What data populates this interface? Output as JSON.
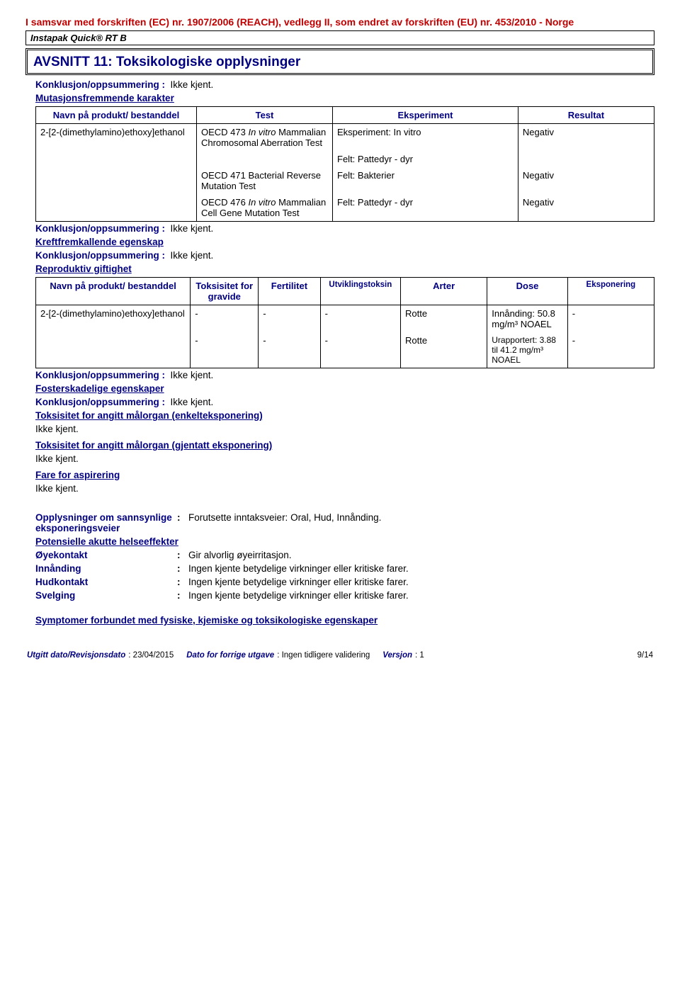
{
  "regulation_header": "I samsvar med forskriften (EC) nr. 1907/2006 (REACH), vedlegg II, som endret av forskriften (EU) nr. 453/2010 - Norge",
  "product_name": "Instapak Quick® RT B",
  "section_title": "AVSNITT 11: Toksikologiske opplysninger",
  "konklusjon_label": "Konklusjon/oppsummering",
  "ikke_kjent": "Ikke kjent.",
  "mutasjons_heading": "Mutasjonsfremmende karakter",
  "table1": {
    "headers": [
      "Navn på produkt/ bestanddel",
      "Test",
      "Eksperiment",
      "Resultat"
    ],
    "substance": "2-[2-(dimethylamino)ethoxy]ethanol",
    "rows": [
      {
        "test_a": "OECD 473 ",
        "test_i": "In vitro",
        "test_b": " Mammalian Chromosomal Aberration Test",
        "exp": "Eksperiment: In vitro",
        "res": "Negativ"
      },
      {
        "test_a": "",
        "test_i": "",
        "test_b": "",
        "exp": "Felt: Pattedyr - dyr",
        "res": ""
      },
      {
        "test_a": "OECD 471 Bacterial Reverse Mutation Test",
        "test_i": "",
        "test_b": "",
        "exp": "Felt: Bakterier",
        "res": "Negativ"
      },
      {
        "test_a": "OECD 476 ",
        "test_i": "In vitro",
        "test_b": " Mammalian Cell Gene Mutation Test",
        "exp": "Felt: Pattedyr - dyr",
        "res": "Negativ"
      }
    ]
  },
  "kreft_heading": "Kreftfremkallende egenskap",
  "repro_heading": "Reproduktiv giftighet",
  "table2": {
    "headers": [
      "Navn på produkt/ bestanddel",
      "Toksisitet for gravide",
      "Fertilitet",
      "Utviklingstoksin",
      "Arter",
      "Dose",
      "Eksponering"
    ],
    "substance": "2-[2-(dimethylamino)ethoxy]ethanol",
    "rows": [
      {
        "c": [
          "-",
          "-",
          "-",
          "Rotte",
          "Innånding: 50.8 mg/m³ NOAEL",
          "-"
        ]
      },
      {
        "c": [
          "-",
          "-",
          "-",
          "Rotte",
          "Urapportert: 3.88 til 41.2 mg/m³ NOAEL",
          "-"
        ]
      }
    ]
  },
  "foster_heading": "Fosterskadelige egenskaper",
  "tox_single_heading": "Toksisitet for angitt målorgan (enkelteksponering)",
  "tox_repeat_heading": "Toksisitet for angitt målorgan (gjentatt eksponering)",
  "fare_heading": "Fare for aspirering",
  "opplysninger_label": "Opplysninger om sannsynlige eksponeringsveier",
  "opplysninger_val": "Forutsette inntaksveier: Oral, Hud, Innånding.",
  "potensielle_heading": "Potensielle akutte helseeffekter",
  "effects": [
    {
      "label": "Øyekontakt",
      "val": "Gir alvorlig øyeirritasjon."
    },
    {
      "label": "Innånding",
      "val": "Ingen kjente betydelige virkninger eller kritiske farer."
    },
    {
      "label": "Hudkontakt",
      "val": "Ingen kjente betydelige virkninger eller kritiske farer."
    },
    {
      "label": "Svelging",
      "val": "Ingen kjente betydelige virkninger eller kritiske farer."
    }
  ],
  "symptomer_heading": "Symptomer forbundet med fysiske, kjemiske og toksikologiske egenskaper",
  "footer": {
    "utgitt_label": "Utgitt dato/Revisjonsdato",
    "utgitt_val": ": 23/04/2015",
    "forrige_label": "Dato for forrige utgave",
    "forrige_val": ": Ingen tidligere validering",
    "versjon_label": "Versjon",
    "versjon_val": ": 1",
    "page": "9/14"
  }
}
